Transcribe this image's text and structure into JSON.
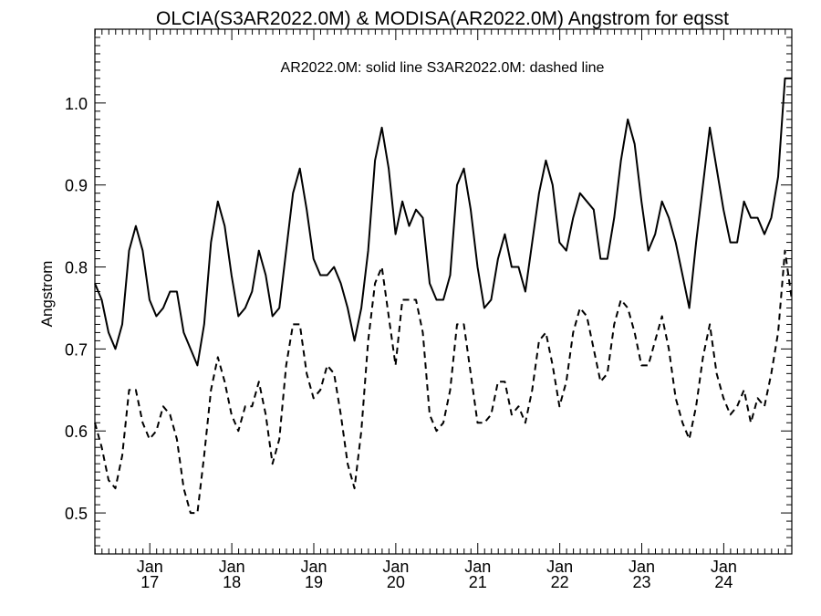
{
  "chart_data": {
    "type": "line",
    "title": "OLCIA(S3AR2022.0M) & MODISA(AR2022.0M)  Angstrom for eqsst",
    "annotation": "AR2022.0M: solid line   S3AR2022.0M: dashed line",
    "ylabel": "Angstrom",
    "xlabel": "",
    "ylim": [
      0.45,
      1.09
    ],
    "xlim": [
      2016.33,
      2024.83
    ],
    "y_ticks": [
      "0.5",
      "0.6",
      "0.7",
      "0.8",
      "0.9",
      "1.0"
    ],
    "x_ticks": [
      {
        "x": 2017.0,
        "month": "Jan",
        "year": "17"
      },
      {
        "x": 2018.0,
        "month": "Jan",
        "year": "18"
      },
      {
        "x": 2019.0,
        "month": "Jan",
        "year": "19"
      },
      {
        "x": 2020.0,
        "month": "Jan",
        "year": "20"
      },
      {
        "x": 2021.0,
        "month": "Jan",
        "year": "21"
      },
      {
        "x": 2022.0,
        "month": "Jan",
        "year": "22"
      },
      {
        "x": 2023.0,
        "month": "Jan",
        "year": "23"
      },
      {
        "x": 2024.0,
        "month": "Jan",
        "year": "24"
      }
    ],
    "x_start": 2016.33,
    "x_step": 0.0833333,
    "series": [
      {
        "style": "solid",
        "values": [
          0.78,
          0.76,
          0.72,
          0.7,
          0.73,
          0.82,
          0.85,
          0.82,
          0.76,
          0.74,
          0.75,
          0.77,
          0.77,
          0.72,
          0.7,
          0.68,
          0.73,
          0.83,
          0.88,
          0.85,
          0.79,
          0.74,
          0.75,
          0.77,
          0.82,
          0.79,
          0.74,
          0.75,
          0.82,
          0.89,
          0.92,
          0.87,
          0.81,
          0.79,
          0.79,
          0.8,
          0.78,
          0.75,
          0.71,
          0.75,
          0.82,
          0.93,
          0.97,
          0.92,
          0.84,
          0.88,
          0.85,
          0.87,
          0.86,
          0.78,
          0.76,
          0.76,
          0.79,
          0.9,
          0.92,
          0.87,
          0.8,
          0.75,
          0.76,
          0.81,
          0.84,
          0.8,
          0.8,
          0.77,
          0.83,
          0.89,
          0.93,
          0.9,
          0.83,
          0.82,
          0.86,
          0.89,
          0.88,
          0.87,
          0.81,
          0.81,
          0.86,
          0.93,
          0.98,
          0.95,
          0.88,
          0.82,
          0.84,
          0.88,
          0.86,
          0.83,
          0.79,
          0.75,
          0.83,
          0.9,
          0.97,
          0.92,
          0.87,
          0.83,
          0.83,
          0.88,
          0.86,
          0.86,
          0.84,
          0.86,
          0.91,
          1.03,
          1.03
        ]
      },
      {
        "style": "dashed",
        "values": [
          0.61,
          0.58,
          0.54,
          0.53,
          0.57,
          0.65,
          0.65,
          0.61,
          0.59,
          0.6,
          0.63,
          0.62,
          0.59,
          0.53,
          0.5,
          0.5,
          0.57,
          0.65,
          0.69,
          0.66,
          0.62,
          0.6,
          0.63,
          0.63,
          0.66,
          0.62,
          0.56,
          0.59,
          0.68,
          0.73,
          0.73,
          0.67,
          0.64,
          0.65,
          0.68,
          0.67,
          0.62,
          0.56,
          0.53,
          0.6,
          0.71,
          0.78,
          0.8,
          0.74,
          0.68,
          0.76,
          0.76,
          0.76,
          0.72,
          0.62,
          0.6,
          0.61,
          0.65,
          0.73,
          0.73,
          0.67,
          0.61,
          0.61,
          0.62,
          0.66,
          0.66,
          0.62,
          0.63,
          0.61,
          0.65,
          0.71,
          0.72,
          0.68,
          0.63,
          0.66,
          0.72,
          0.75,
          0.74,
          0.7,
          0.66,
          0.67,
          0.73,
          0.76,
          0.75,
          0.72,
          0.68,
          0.68,
          0.71,
          0.74,
          0.7,
          0.64,
          0.61,
          0.59,
          0.63,
          0.69,
          0.73,
          0.67,
          0.64,
          0.62,
          0.63,
          0.65,
          0.61,
          0.64,
          0.63,
          0.67,
          0.72,
          0.82,
          0.76
        ]
      }
    ]
  }
}
